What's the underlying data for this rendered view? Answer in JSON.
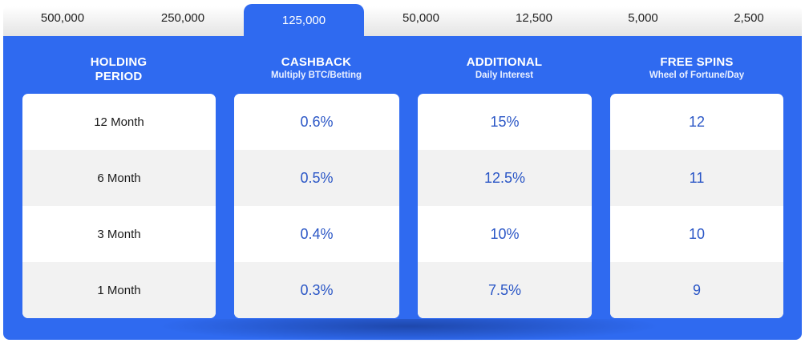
{
  "tabs": [
    "500,000",
    "250,000",
    "125,000",
    "50,000",
    "12,500",
    "5,000",
    "2,500"
  ],
  "active_tab": "125,000",
  "columns": {
    "holding": {
      "title_line1": "HOLDING",
      "title_line2": "PERIOD"
    },
    "cashback": {
      "title": "CASHBACK",
      "subtitle": "Multiply BTC/Betting"
    },
    "additional": {
      "title": "ADDITIONAL",
      "subtitle": "Daily Interest"
    },
    "free_spins": {
      "title": "FREE SPINS",
      "subtitle": "Wheel of Fortune/Day"
    }
  },
  "rows": [
    {
      "period": "12 Month",
      "cashback": "0.6%",
      "interest": "15%",
      "spins": "12"
    },
    {
      "period": "6 Month",
      "cashback": "0.5%",
      "interest": "12.5%",
      "spins": "11"
    },
    {
      "period": "3 Month",
      "cashback": "0.4%",
      "interest": "10%",
      "spins": "10"
    },
    {
      "period": "1 Month",
      "cashback": "0.3%",
      "interest": "7.5%",
      "spins": "9"
    }
  ],
  "colors": {
    "accent": "#2f6af0",
    "value_text": "#2a56c6",
    "row_alt": "#f2f2f2"
  }
}
